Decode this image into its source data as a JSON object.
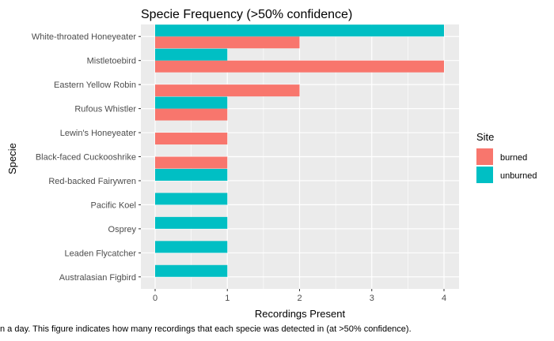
{
  "chart_data": {
    "type": "bar",
    "orientation": "horizontal",
    "title": "Specie Frequency (>50% confidence)",
    "xlabel": "Recordings Present",
    "ylabel": "Specie",
    "xlim": [
      0,
      4.2
    ],
    "x_ticks": [
      "0",
      "1",
      "2",
      "3",
      "4"
    ],
    "categories": [
      "White-throated Honeyeater",
      "Mistletoebird",
      "Eastern Yellow Robin",
      "Rufous Whistler",
      "Lewin's Honeyeater",
      "Black-faced Cuckooshrike",
      "Red-backed Fairywren",
      "Pacific Koel",
      "Osprey",
      "Leaden Flycatcher",
      "Australasian Figbird"
    ],
    "series": [
      {
        "name": "burned",
        "color": "#F8766D",
        "values": [
          2,
          4,
          2,
          1,
          1,
          1,
          0,
          0,
          0,
          0,
          0
        ]
      },
      {
        "name": "unburned",
        "color": "#00BFC4",
        "values": [
          4,
          1,
          0,
          1,
          0,
          0,
          1,
          1,
          1,
          1,
          1
        ]
      }
    ],
    "legend": {
      "title": "Site",
      "position": "right"
    },
    "grid": true,
    "panel_background": "#EBEBEB",
    "caption": "n a day. This figure indicates how many recordings that each specie was detected in (at >50% confidence)."
  }
}
